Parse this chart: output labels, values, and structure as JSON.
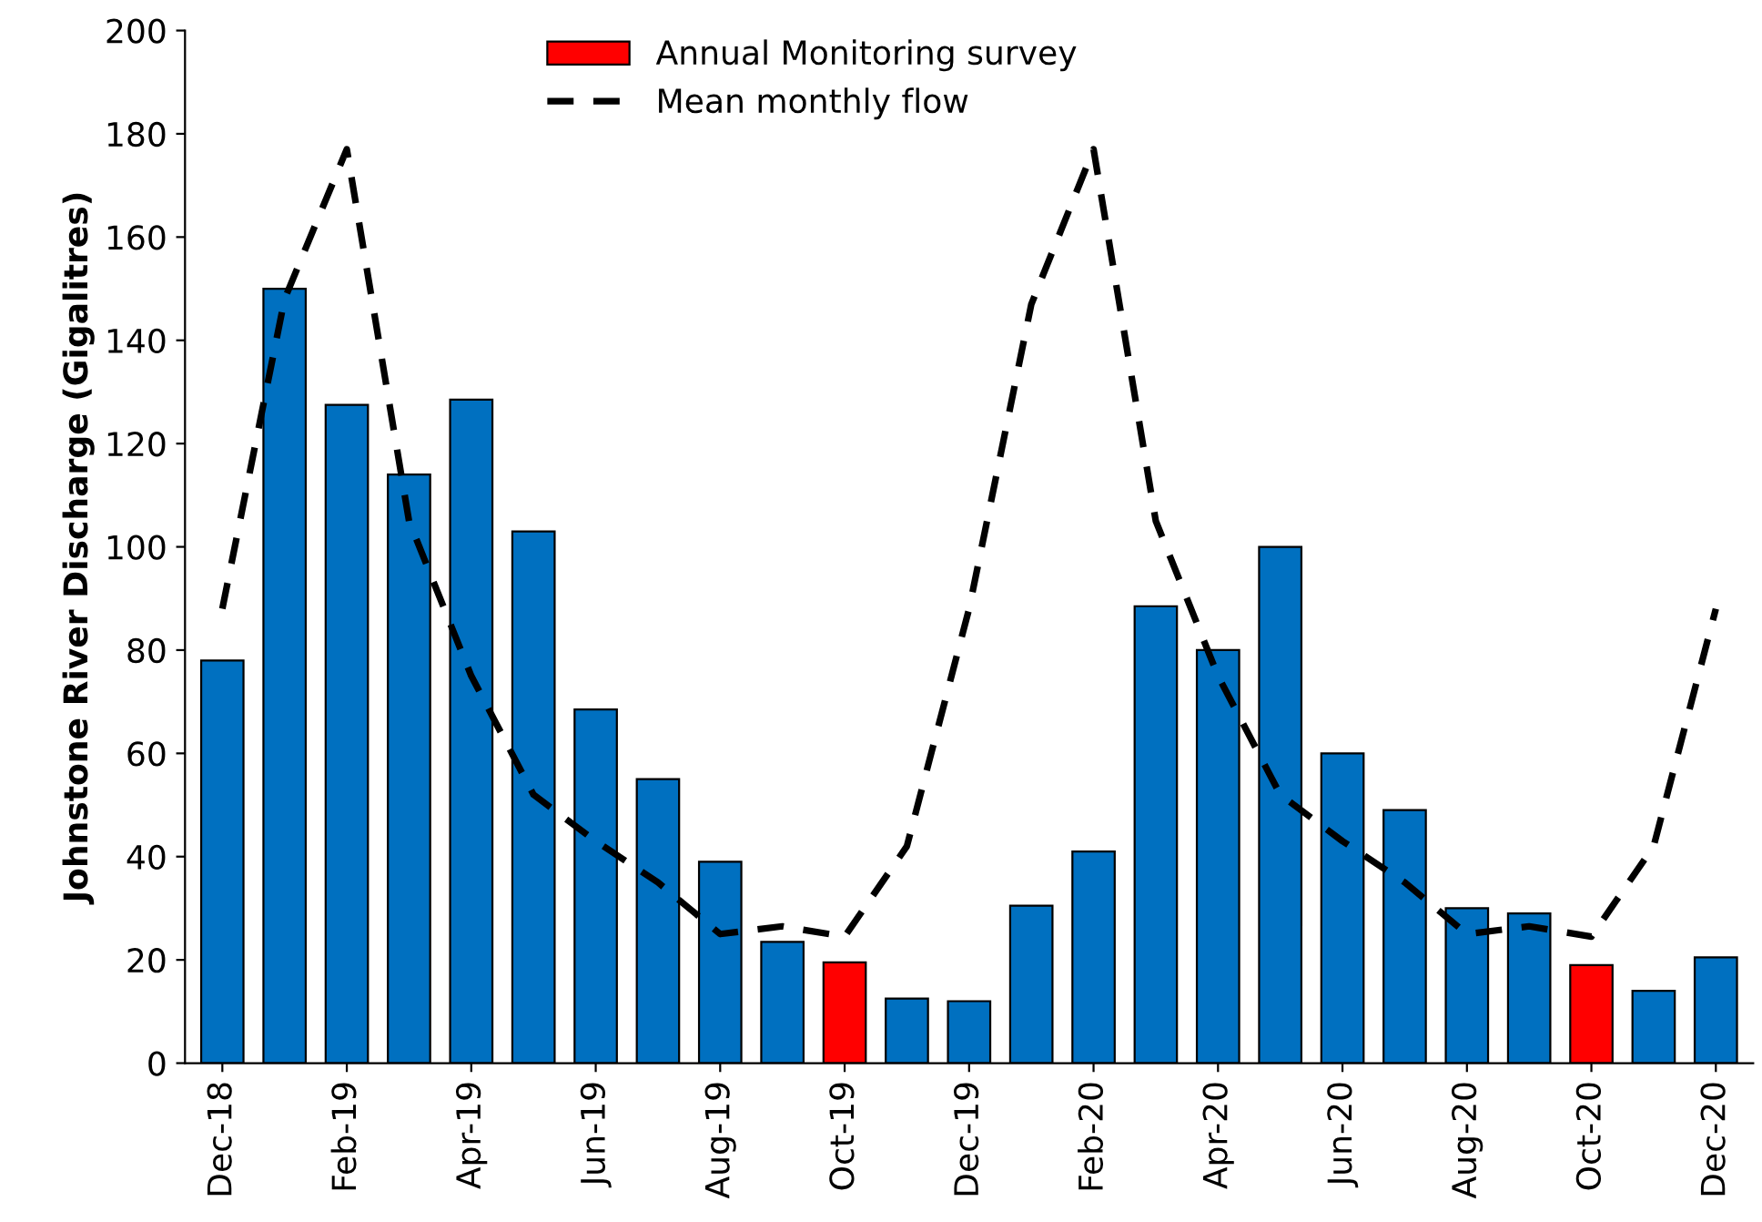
{
  "chart_data": {
    "type": "bar",
    "ylabel": "Johnstone River Discharge (Gigalitres)",
    "categories": [
      "Dec-18",
      null,
      "Feb-19",
      null,
      "Apr-19",
      null,
      "Jun-19",
      null,
      "Aug-19",
      null,
      "Oct-19",
      null,
      "Dec-19",
      null,
      "Feb-20",
      null,
      "Apr-20",
      null,
      "Jun-20",
      null,
      "Aug-20",
      null,
      "Oct-20",
      null,
      "Dec-20"
    ],
    "series": [
      {
        "color": "#0070c0",
        "values": [
          78,
          150,
          127.5,
          114,
          128.5,
          103,
          68.5,
          55,
          39,
          23.5,
          null,
          12.5,
          12,
          30.5,
          41,
          88.5,
          80,
          100,
          60,
          49,
          30,
          29,
          null,
          14,
          20.5
        ]
      },
      {
        "name": "Annual Monitoring survey",
        "color": "#ff0000",
        "values": [
          null,
          null,
          null,
          null,
          null,
          null,
          null,
          null,
          null,
          null,
          19.5,
          null,
          null,
          null,
          null,
          null,
          null,
          null,
          null,
          null,
          null,
          null,
          19,
          null,
          null
        ]
      },
      {
        "type": "line",
        "name": "Mean monthly flow",
        "color": "#000000",
        "line_style": "dashed",
        "values": [
          88,
          148,
          177,
          105,
          75,
          52,
          43,
          35,
          25,
          26.5,
          24.5,
          42,
          88,
          147,
          177,
          105,
          75,
          52,
          43,
          35,
          25,
          26.5,
          24.5,
          42,
          88
        ]
      }
    ],
    "ylim": [
      0,
      200
    ],
    "yticks": [
      0,
      20,
      40,
      60,
      80,
      100,
      120,
      140,
      160,
      180,
      200
    ],
    "legend": "top",
    "grid": false
  }
}
